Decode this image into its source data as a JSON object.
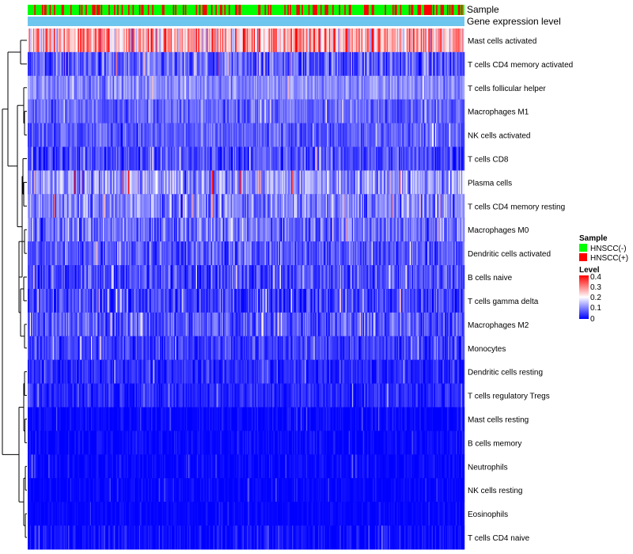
{
  "chart_data": {
    "type": "heatmap",
    "title": "",
    "xlabel": "",
    "ylabel": "",
    "n_samples": 400,
    "annotation_rows": [
      "Sample",
      "Gene expression level"
    ],
    "rows": [
      {
        "label": "Mast cells activated",
        "mean": 0.26,
        "spread": 0.1
      },
      {
        "label": "T cells CD4 memory activated",
        "mean": 0.07,
        "spread": 0.06
      },
      {
        "label": "T cells follicular helper",
        "mean": 0.11,
        "spread": 0.04
      },
      {
        "label": "Macrophages M1",
        "mean": 0.08,
        "spread": 0.04
      },
      {
        "label": "NK cells activated",
        "mean": 0.07,
        "spread": 0.04
      },
      {
        "label": "T cells CD8",
        "mean": 0.06,
        "spread": 0.05
      },
      {
        "label": "Plasma cells",
        "mean": 0.12,
        "spread": 0.07
      },
      {
        "label": "T cells CD4 memory resting",
        "mean": 0.1,
        "spread": 0.06
      },
      {
        "label": "Macrophages M0",
        "mean": 0.09,
        "spread": 0.06
      },
      {
        "label": "Dendritic cells activated",
        "mean": 0.07,
        "spread": 0.05
      },
      {
        "label": "B cells naive",
        "mean": 0.06,
        "spread": 0.05
      },
      {
        "label": "T cells gamma delta",
        "mean": 0.05,
        "spread": 0.05
      },
      {
        "label": "Macrophages M2",
        "mean": 0.07,
        "spread": 0.05
      },
      {
        "label": "Monocytes",
        "mean": 0.05,
        "spread": 0.04
      },
      {
        "label": "Dendritic cells resting",
        "mean": 0.03,
        "spread": 0.03
      },
      {
        "label": "T cells regulatory  Tregs",
        "mean": 0.03,
        "spread": 0.03
      },
      {
        "label": "Mast cells resting",
        "mean": 0.005,
        "spread": 0.02
      },
      {
        "label": "B cells memory",
        "mean": 0.005,
        "spread": 0.02
      },
      {
        "label": "Neutrophils",
        "mean": 0.005,
        "spread": 0.02
      },
      {
        "label": "NK cells resting",
        "mean": 0.004,
        "spread": 0.015
      },
      {
        "label": "Eosinophils",
        "mean": 0.003,
        "spread": 0.012
      },
      {
        "label": "T cells CD4 naive",
        "mean": 0.01,
        "spread": 0.03
      }
    ],
    "color_scale": {
      "min": 0,
      "max": 0.4,
      "low": "#0000ff",
      "mid": "#ffffff",
      "high": "#ff0000",
      "mid_value": 0.2
    },
    "legend": {
      "sample_title": "Sample",
      "sample_items": [
        {
          "label": "HNSCC(-)",
          "color": "#00ff00"
        },
        {
          "label": "HNSCC(+)",
          "color": "#ff0000"
        }
      ],
      "level_title": "Level",
      "level_ticks": [
        "0.4",
        "0.3",
        "0.2",
        "0.1",
        "0"
      ],
      "placement": "right"
    },
    "expression_bar_color": "#6ec6ee",
    "sample_positive_fraction": 0.3
  }
}
